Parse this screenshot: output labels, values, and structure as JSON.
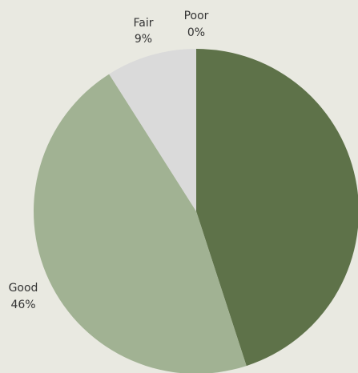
{
  "chart_data": {
    "type": "pie",
    "start_angle_deg": 0,
    "direction": "clockwise",
    "slices": [
      {
        "label": "",
        "percent_text": "",
        "value": 45,
        "color": "#5e7249"
      },
      {
        "label": "Good",
        "percent_text": "46%",
        "value": 46,
        "color": "#a1b293"
      },
      {
        "label": "Fair",
        "percent_text": "9%",
        "value": 9,
        "color": "#dadada"
      },
      {
        "label": "Poor",
        "percent_text": "0%",
        "value": 0,
        "color": "#c8c8c8"
      }
    ]
  }
}
